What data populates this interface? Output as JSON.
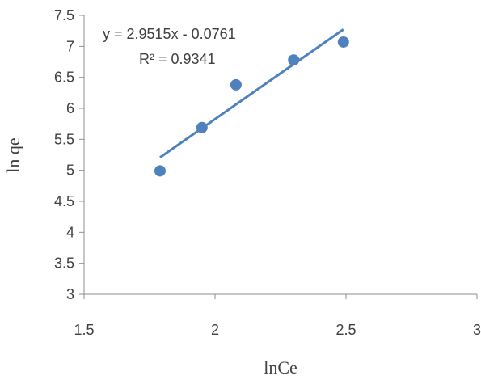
{
  "chart_data": {
    "type": "scatter",
    "title": "",
    "xlabel": "lnCe",
    "ylabel": "ln qe",
    "xlim": [
      1.5,
      3
    ],
    "ylim": [
      3,
      7.5
    ],
    "xticks": [
      "1.5",
      "2",
      "2.5",
      "3"
    ],
    "yticks": [
      "3",
      "3.5",
      "4",
      "4.5",
      "5",
      "5.5",
      "6",
      "6.5",
      "7",
      "7.5"
    ],
    "grid": false,
    "series": [
      {
        "color": "#4F81BD",
        "x": [
          1.79,
          1.95,
          2.08,
          2.3,
          2.49
        ],
        "y": [
          4.99,
          5.69,
          6.38,
          6.78,
          7.07
        ]
      }
    ],
    "trendline": {
      "slope": 2.9515,
      "intercept": -0.0761,
      "x_range": [
        1.79,
        2.49
      ],
      "color": "#4F81BD",
      "equation": "y = 2.9515x - 0.0761",
      "r_squared": "R² = 0.9341"
    }
  }
}
